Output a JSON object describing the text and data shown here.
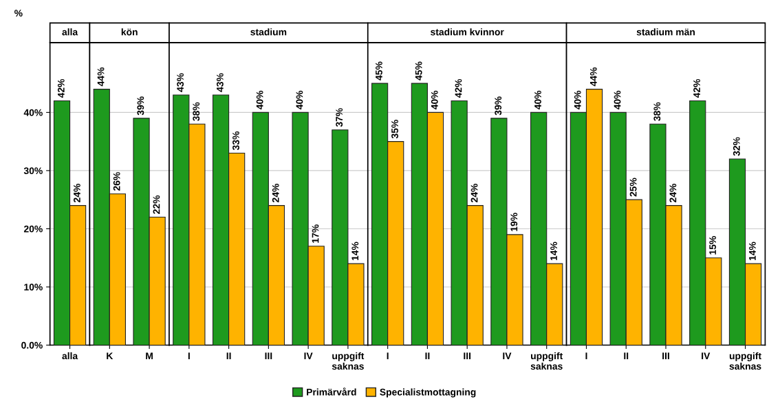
{
  "chart_data": [
    {
      "type": "bar",
      "title": "alla",
      "ylabel": "%",
      "categories": [
        "alla"
      ],
      "ylim": [
        0,
        52
      ],
      "yticks": [
        {
          "value": 0,
          "label": "0.0%"
        },
        {
          "value": 10,
          "label": "10%"
        },
        {
          "value": 20,
          "label": "20%"
        },
        {
          "value": 30,
          "label": "30%"
        },
        {
          "value": 40,
          "label": "40%"
        }
      ],
      "grid": "y",
      "legend": "bottom",
      "series": [
        {
          "name": "Primärvård",
          "color": "#1e9a1e",
          "values": [
            42
          ],
          "value_labels": [
            "42%"
          ]
        },
        {
          "name": "Specialistmottagning",
          "color": "#ffb300",
          "values": [
            24
          ],
          "value_labels": [
            "24%"
          ]
        }
      ]
    },
    {
      "type": "bar",
      "title": "kön",
      "categories": [
        "K",
        "M"
      ],
      "ylim": [
        0,
        52
      ],
      "yticks": [
        0,
        10,
        20,
        30,
        40
      ],
      "grid": "y",
      "tick_labels": "x",
      "series": [
        {
          "color": "#1e9a1e",
          "values": [
            44,
            39
          ],
          "value_labels": [
            "44%",
            "39%"
          ]
        },
        {
          "color": "#ffb300",
          "values": [
            26,
            22
          ],
          "value_labels": [
            "26%",
            "22%"
          ]
        }
      ]
    },
    {
      "type": "bar",
      "title": "stadium",
      "categories": [
        "I",
        "II",
        "III",
        "IV",
        "uppgift\nsaknas"
      ],
      "ylim": [
        0,
        52
      ],
      "yticks": [
        0,
        10,
        20,
        30,
        40
      ],
      "grid": "y",
      "tick_labels": "x",
      "series": [
        {
          "color": "#1e9a1e",
          "values": [
            43,
            43,
            40,
            40,
            37
          ],
          "value_labels": [
            "43%",
            "43%",
            "40%",
            "40%",
            "37%"
          ]
        },
        {
          "color": "#ffb300",
          "values": [
            38,
            33,
            24,
            17,
            14
          ],
          "value_labels": [
            "38%",
            "33%",
            "24%",
            "17%",
            "14%"
          ]
        }
      ]
    },
    {
      "type": "bar",
      "title": "stadium kvinnor",
      "categories": [
        "I",
        "II",
        "III",
        "IV",
        "uppgift\nsaknas"
      ],
      "ylim": [
        0,
        52
      ],
      "yticks": [
        0,
        10,
        20,
        30,
        40
      ],
      "grid": "y",
      "tick_labels": "x",
      "series": [
        {
          "color": "#1e9a1e",
          "values": [
            45,
            45,
            42,
            39,
            40
          ],
          "value_labels": [
            "45%",
            "45%",
            "42%",
            "39%",
            "40%"
          ]
        },
        {
          "color": "#ffb300",
          "values": [
            35,
            40,
            24,
            19,
            14
          ],
          "value_labels": [
            "35%",
            "40%",
            "24%",
            "19%",
            "14%"
          ]
        }
      ]
    },
    {
      "type": "bar",
      "title": "stadium män",
      "categories": [
        "I",
        "II",
        "III",
        "IV",
        "uppgift\nsaknas"
      ],
      "ylim": [
        0,
        52
      ],
      "yticks": [
        0,
        10,
        20,
        30,
        40
      ],
      "grid": "y",
      "tick_labels": "x",
      "series": [
        {
          "color": "#1e9a1e",
          "values": [
            40,
            40,
            38,
            42,
            32
          ],
          "value_labels": [
            "40%",
            "40%",
            "38%",
            "42%",
            "32%"
          ]
        },
        {
          "color": "#ffb300",
          "values": [
            44,
            25,
            24,
            15,
            14
          ],
          "value_labels": [
            "44%",
            "25%",
            "24%",
            "15%",
            "14%"
          ]
        }
      ]
    }
  ]
}
